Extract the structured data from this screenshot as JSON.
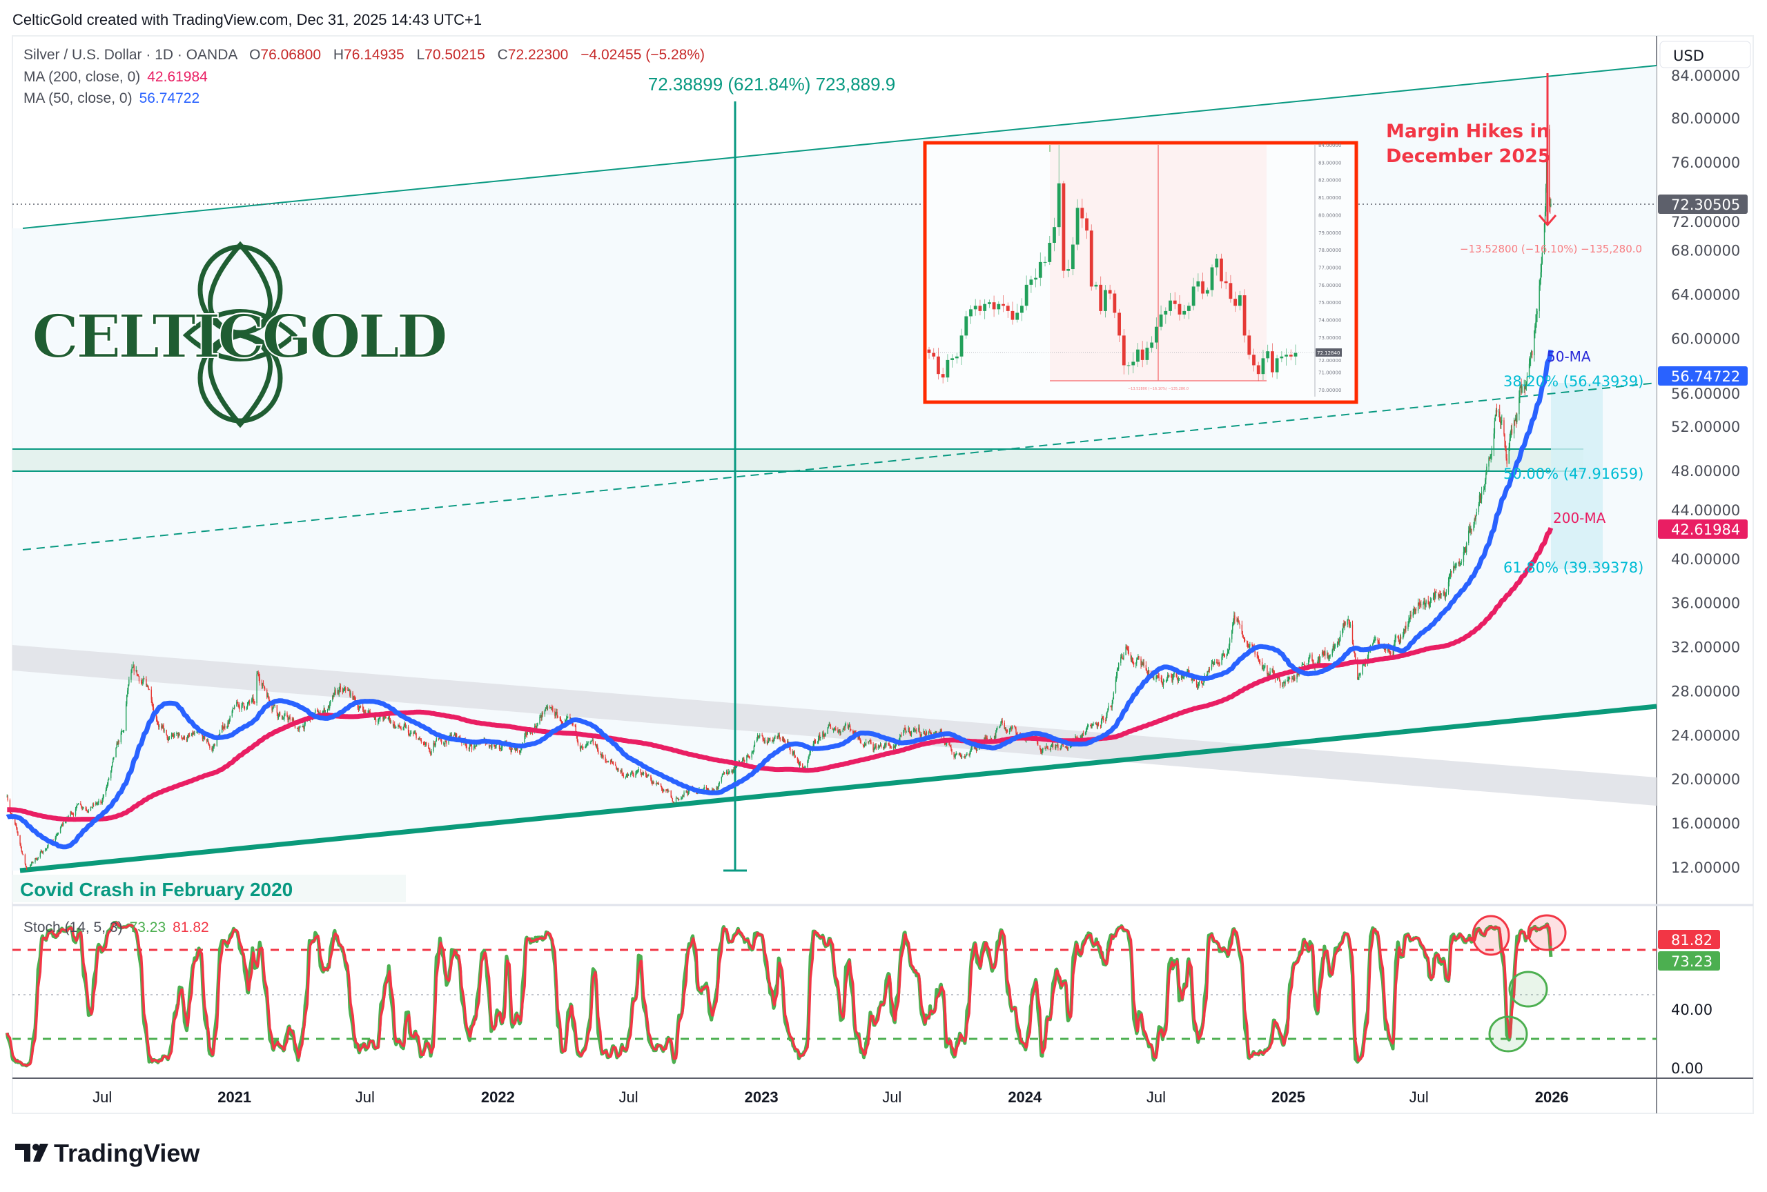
{
  "header": {
    "credit": "CelticGold created with TradingView.com, Dec 31, 2025 14:43 UTC+1"
  },
  "legend": {
    "symbol": "Silver / U.S. Dollar · 1D · OANDA",
    "o_label": "O",
    "o": "76.06800",
    "h_label": "H",
    "h": "76.14935",
    "l_label": "L",
    "l": "70.50215",
    "c_label": "C",
    "c": "72.22300",
    "change": "−4.02455 (−5.28%)",
    "ma200_label": "MA (200, close, 0)",
    "ma200": "42.61984",
    "ma50_label": "MA (50, close, 0)",
    "ma50": "56.74722",
    "stoch_label": "Stoch (14, 5, 3)",
    "stoch_k": "73.23",
    "stoch_d": "81.82"
  },
  "axis": {
    "currency_button": "USD",
    "price_ticks": [
      "84.00000",
      "80.00000",
      "76.00000",
      "72.00000",
      "68.00000",
      "64.00000",
      "60.00000",
      "56.00000",
      "52.00000",
      "48.00000",
      "44.00000",
      "40.00000",
      "36.00000",
      "32.00000",
      "28.00000",
      "24.00000",
      "20.00000",
      "16.00000",
      "12.00000"
    ],
    "tags": {
      "last": "72.30505",
      "ma50": "56.74722",
      "ma200": "42.61984",
      "stoch_d": "81.82",
      "stoch_k": "73.23"
    },
    "stoch_ticks": [
      "40.00",
      "0.00"
    ],
    "time_ticks": [
      {
        "label": "Jul",
        "date": "2020-07-01",
        "bold": false
      },
      {
        "label": "2021",
        "date": "2021-01-01",
        "bold": true
      },
      {
        "label": "Jul",
        "date": "2021-07-01",
        "bold": false
      },
      {
        "label": "2022",
        "date": "2022-01-01",
        "bold": true
      },
      {
        "label": "Jul",
        "date": "2022-07-01",
        "bold": false
      },
      {
        "label": "2023",
        "date": "2023-01-01",
        "bold": true
      },
      {
        "label": "Jul",
        "date": "2023-07-01",
        "bold": false
      },
      {
        "label": "2024",
        "date": "2024-01-01",
        "bold": true
      },
      {
        "label": "Jul",
        "date": "2024-07-01",
        "bold": false
      },
      {
        "label": "2025",
        "date": "2025-01-01",
        "bold": true
      },
      {
        "label": "Jul",
        "date": "2025-07-01",
        "bold": false
      },
      {
        "label": "2026",
        "date": "2026-01-01",
        "bold": true
      }
    ]
  },
  "annotations": {
    "measure_up": "72.38899 (621.84%) 723,889.9",
    "margin_line1": "Margin Hikes in",
    "margin_line2": "December 2025",
    "measure_down": "−13.52800 (−16.10%) −135,280.0",
    "ma50_tag": "50-MA",
    "ma200_tag": "200-MA",
    "fib382": "38.20% (56.43939)",
    "fib500": "50.00% (47.91659)",
    "fib618": "61.80% (39.39378)",
    "covid": "Covid Crash in February 2020"
  },
  "logo": {
    "text": "CELTICGOLD"
  },
  "footer": {
    "brand": "TradingView"
  },
  "colors": {
    "up": "#22a05a",
    "down": "#e53935",
    "ma50": "#2962ff",
    "ma200": "#e91e63",
    "trend": "#089981",
    "fib": "#00bcd4",
    "stoch_k": "#4caf50",
    "stoch_d": "#f23645"
  },
  "chart_data": {
    "type": "candlestick",
    "title": "Silver / U.S. Dollar · 1D · OANDA",
    "ylim": [
      10,
      86
    ],
    "y_scale": "linear",
    "grid": false,
    "closes": [
      [
        "2020-02-20",
        18.4
      ],
      [
        "2020-03-18",
        11.8
      ],
      [
        "2020-04-30",
        15.0
      ],
      [
        "2020-05-29",
        17.8
      ],
      [
        "2020-06-30",
        17.8
      ],
      [
        "2020-07-31",
        24.4
      ],
      [
        "2020-08-07",
        29.0
      ],
      [
        "2020-08-31",
        28.5
      ],
      [
        "2020-09-30",
        23.5
      ],
      [
        "2020-10-30",
        23.9
      ],
      [
        "2020-11-30",
        22.6
      ],
      [
        "2020-12-31",
        26.4
      ],
      [
        "2021-01-29",
        26.9
      ],
      [
        "2021-02-01",
        29.5
      ],
      [
        "2021-02-26",
        26.7
      ],
      [
        "2021-03-31",
        24.5
      ],
      [
        "2021-04-30",
        25.9
      ],
      [
        "2021-05-31",
        27.9
      ],
      [
        "2021-06-30",
        26.1
      ],
      [
        "2021-07-30",
        25.5
      ],
      [
        "2021-08-31",
        24.0
      ],
      [
        "2021-09-30",
        22.2
      ],
      [
        "2021-10-29",
        24.0
      ],
      [
        "2021-11-30",
        23.0
      ],
      [
        "2021-12-31",
        23.3
      ],
      [
        "2022-01-31",
        22.4
      ],
      [
        "2022-03-08",
        26.4
      ],
      [
        "2022-03-31",
        25.1
      ],
      [
        "2022-04-29",
        22.8
      ],
      [
        "2022-05-31",
        21.6
      ],
      [
        "2022-06-30",
        20.3
      ],
      [
        "2022-07-29",
        20.3
      ],
      [
        "2022-09-01",
        17.8
      ],
      [
        "2022-09-30",
        19.0
      ],
      [
        "2022-10-31",
        19.2
      ],
      [
        "2022-11-30",
        21.5
      ],
      [
        "2022-12-30",
        24.0
      ],
      [
        "2023-01-31",
        23.6
      ],
      [
        "2023-02-28",
        20.9
      ],
      [
        "2023-03-31",
        24.1
      ],
      [
        "2023-04-28",
        25.0
      ],
      [
        "2023-05-31",
        23.5
      ],
      [
        "2023-06-30",
        22.8
      ],
      [
        "2023-07-31",
        24.5
      ],
      [
        "2023-08-31",
        24.2
      ],
      [
        "2023-09-29",
        22.3
      ],
      [
        "2023-10-31",
        22.9
      ],
      [
        "2023-11-30",
        25.3
      ],
      [
        "2023-12-29",
        23.8
      ],
      [
        "2024-01-31",
        23.0
      ],
      [
        "2024-02-29",
        22.7
      ],
      [
        "2024-03-28",
        24.9
      ],
      [
        "2024-04-30",
        26.5
      ],
      [
        "2024-05-20",
        32.0
      ],
      [
        "2024-05-31",
        30.4
      ],
      [
        "2024-06-28",
        29.1
      ],
      [
        "2024-07-31",
        28.9
      ],
      [
        "2024-08-30",
        28.9
      ],
      [
        "2024-09-30",
        31.1
      ],
      [
        "2024-10-22",
        34.5
      ],
      [
        "2024-10-31",
        32.7
      ],
      [
        "2024-11-29",
        30.3
      ],
      [
        "2024-12-31",
        28.9
      ],
      [
        "2025-01-31",
        31.3
      ],
      [
        "2025-02-28",
        31.2
      ],
      [
        "2025-03-28",
        34.0
      ],
      [
        "2025-04-07",
        29.0
      ],
      [
        "2025-04-30",
        32.6
      ],
      [
        "2025-05-30",
        33.0
      ],
      [
        "2025-06-30",
        36.0
      ],
      [
        "2025-07-31",
        36.7
      ],
      [
        "2025-08-29",
        39.7
      ],
      [
        "2025-09-30",
        46.5
      ],
      [
        "2025-10-16",
        53.5
      ],
      [
        "2025-10-31",
        48.6
      ],
      [
        "2025-11-28",
        56.5
      ],
      [
        "2025-12-10",
        61.5
      ],
      [
        "2025-12-17",
        66.0
      ],
      [
        "2025-12-23",
        71.5
      ],
      [
        "2025-12-26",
        79.0
      ],
      [
        "2025-12-29",
        72.0
      ],
      [
        "2025-12-31",
        72.2
      ]
    ],
    "ma": [
      {
        "name": "MA (200, close, 0)",
        "last": 42.61984
      },
      {
        "name": "MA (50, close, 0)",
        "last": 56.74722
      }
    ],
    "fib_levels": [
      {
        "level": "38.20%",
        "price": 56.43939
      },
      {
        "level": "50.00%",
        "price": 47.91659
      },
      {
        "level": "61.80%",
        "price": 39.39378
      }
    ],
    "stochastic": {
      "params": "14, 5, 3",
      "k_last": 73.23,
      "d_last": 81.82,
      "levels": [
        80,
        50,
        20
      ],
      "ylim": [
        0,
        100
      ]
    },
    "inset": {
      "ylim": [
        70,
        84
      ],
      "last": "72.12840",
      "ticks": [
        "84.00000",
        "83.00000",
        "82.00000",
        "81.00000",
        "80.00000",
        "79.00000",
        "78.00000",
        "77.00000",
        "76.00000",
        "75.00000",
        "74.00000",
        "73.00000",
        "72.00000",
        "71.00000",
        "70.00000"
      ],
      "measure": "−13.52800 (−16.10%) −135,280.0",
      "closes": [
        72.1,
        71.9,
        70.9,
        70.7,
        71.7,
        71.8,
        71.9,
        73.1,
        74.2,
        74.6,
        74.8,
        74.5,
        74.9,
        75.0,
        74.6,
        74.9,
        74.8,
        74.5,
        74.0,
        74.4,
        74.8,
        76.0,
        76.3,
        76.4,
        77.3,
        77.3,
        78.4,
        79.3,
        81.8,
        76.8,
        76.9,
        78.3,
        80.4,
        79.8,
        79.1,
        75.9,
        76.0,
        74.5,
        75.7,
        75.5,
        74.4,
        73.1,
        71.4,
        71.4,
        71.6,
        72.3,
        71.7,
        72.4,
        72.7,
        73.6,
        74.3,
        74.5,
        75.1,
        74.9,
        74.3,
        74.5,
        74.8,
        75.9,
        76.2,
        75.5,
        75.7,
        77.0,
        77.5,
        76.2,
        76.1,
        75.2,
        74.8,
        75.4,
        73.1,
        72.0,
        71.4,
        70.9,
        71.8,
        72.2,
        71.0,
        71.8,
        71.9,
        72.0,
        71.9,
        72.1
      ]
    }
  }
}
